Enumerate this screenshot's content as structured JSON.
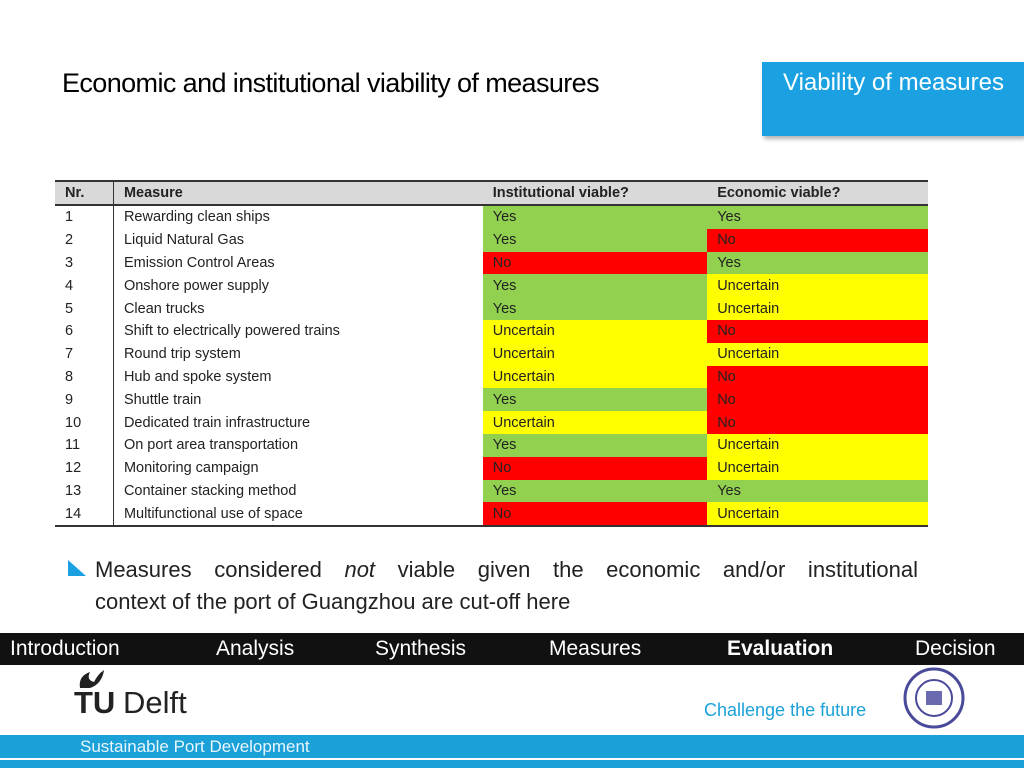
{
  "header": {
    "title": "Economic and institutional viability of measures",
    "badge": "Viability of measures"
  },
  "table": {
    "columns": [
      "Nr.",
      "Measure",
      "Institutional viable?",
      "Economic viable?"
    ],
    "rows": [
      [
        "1",
        "Rewarding clean ships",
        "Yes",
        "Yes"
      ],
      [
        "2",
        "Liquid Natural Gas",
        "Yes",
        "No"
      ],
      [
        "3",
        "Emission Control Areas",
        "No",
        "Yes"
      ],
      [
        "4",
        "Onshore power supply",
        "Yes",
        "Uncertain"
      ],
      [
        "5",
        "Clean trucks",
        "Yes",
        "Uncertain"
      ],
      [
        "6",
        "Shift to electrically powered trains",
        "Uncertain",
        "No"
      ],
      [
        "7",
        "Round trip system",
        "Uncertain",
        "Uncertain"
      ],
      [
        "8",
        "Hub and spoke system",
        "Uncertain",
        "No"
      ],
      [
        "9",
        "Shuttle train",
        "Yes",
        "No"
      ],
      [
        "10",
        "Dedicated train infrastructure",
        "Uncertain",
        "No"
      ],
      [
        "11",
        "On port area transportation",
        "Yes",
        "Uncertain"
      ],
      [
        "12",
        "Monitoring campaign",
        "No",
        "Uncertain"
      ],
      [
        "13",
        "Container stacking method",
        "Yes",
        "Yes"
      ],
      [
        "14",
        "Multifunctional use of space",
        "No",
        "Uncertain"
      ]
    ],
    "status_colors": {
      "Yes": "#92d050",
      "No": "#ff0000",
      "Uncertain": "#ffff00"
    }
  },
  "bullet": {
    "parts": [
      "Measures considered ",
      "not",
      " viable given the economic and/or institutional",
      "context of the port of Guangzhou are cut-off here"
    ]
  },
  "nav": {
    "items": [
      "Introduction",
      "Analysis",
      "Synthesis",
      "Measures",
      "Evaluation",
      "Decision"
    ],
    "active": 4
  },
  "logo": {
    "tu": "TU",
    "delft": "Delft"
  },
  "tagline": "Challenge the future",
  "footer": "Sustainable Port Development"
}
